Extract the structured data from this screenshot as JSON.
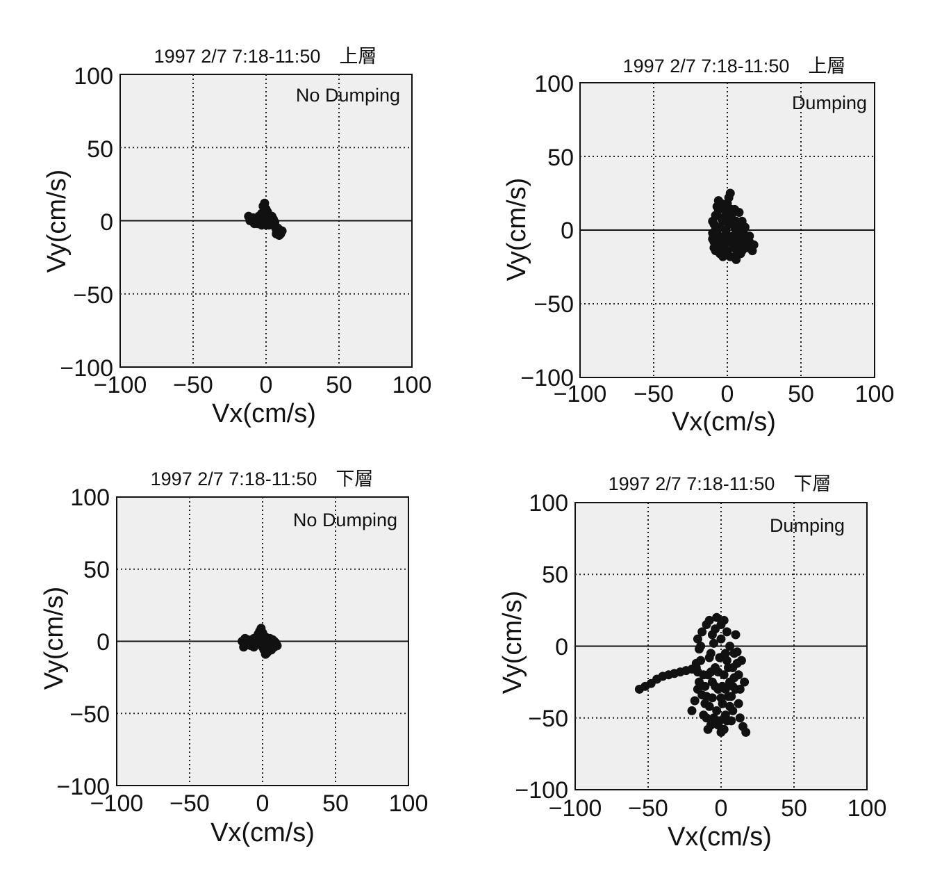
{
  "chart_data": [
    {
      "type": "scatter",
      "title": "1997 2/7 7:18-11:50　上層",
      "annotation": "No Dumping",
      "xlabel": "Vx(cm/s)",
      "ylabel": "Vy(cm/s)",
      "xlim": [
        -100,
        100
      ],
      "ylim": [
        -100,
        100
      ],
      "xticks": [
        "−100",
        "−50",
        "0",
        "50",
        "100"
      ],
      "yticks": [
        "100",
        "50",
        "0",
        "−50",
        "−100"
      ],
      "grid": true,
      "points": [
        [
          -12,
          3
        ],
        [
          -11,
          0
        ],
        [
          -9,
          2
        ],
        [
          -8,
          -2
        ],
        [
          -6,
          1
        ],
        [
          -5,
          3
        ],
        [
          -4,
          -1
        ],
        [
          -3,
          5
        ],
        [
          -2,
          10
        ],
        [
          -1,
          12
        ],
        [
          0,
          8
        ],
        [
          1,
          6
        ],
        [
          2,
          3
        ],
        [
          3,
          0
        ],
        [
          2,
          -3
        ],
        [
          4,
          -2
        ],
        [
          5,
          1
        ],
        [
          6,
          -4
        ],
        [
          7,
          -6
        ],
        [
          8,
          -8
        ],
        [
          9,
          -10
        ],
        [
          10,
          -9
        ],
        [
          11,
          -7
        ],
        [
          8,
          -5
        ],
        [
          5,
          -3
        ],
        [
          3,
          -1
        ],
        [
          0,
          2
        ],
        [
          -2,
          0
        ],
        [
          -4,
          2
        ],
        [
          -6,
          -2
        ],
        [
          -8,
          0
        ],
        [
          -10,
          1
        ],
        [
          0,
          -3
        ],
        [
          4,
          3
        ],
        [
          6,
          -1
        ],
        [
          9,
          -6
        ],
        [
          7,
          -9
        ],
        [
          -1,
          4
        ],
        [
          1,
          -2
        ],
        [
          -3,
          -3
        ]
      ]
    },
    {
      "type": "scatter",
      "title": "1997 2/7 7:18-11:50　上層",
      "annotation": "Dumping",
      "xlabel": "Vx(cm/s)",
      "ylabel": "Vy(cm/s)",
      "xlim": [
        -100,
        100
      ],
      "ylim": [
        -100,
        100
      ],
      "xticks": [
        "−100",
        "−50",
        "0",
        "50",
        "100"
      ],
      "yticks": [
        "100",
        "50",
        "0",
        "−50",
        "−100"
      ],
      "grid": true,
      "points": [
        [
          -10,
          -2
        ],
        [
          -9,
          4
        ],
        [
          -8,
          10
        ],
        [
          -7,
          16
        ],
        [
          -6,
          20
        ],
        [
          -5,
          -8
        ],
        [
          -4,
          -14
        ],
        [
          -3,
          6
        ],
        [
          -2,
          -4
        ],
        [
          -1,
          12
        ],
        [
          0,
          18
        ],
        [
          1,
          22
        ],
        [
          2,
          25
        ],
        [
          3,
          14
        ],
        [
          4,
          -12
        ],
        [
          5,
          -18
        ],
        [
          6,
          -20
        ],
        [
          7,
          -14
        ],
        [
          8,
          -6
        ],
        [
          9,
          2
        ],
        [
          10,
          6
        ],
        [
          11,
          -2
        ],
        [
          12,
          -8
        ],
        [
          13,
          -12
        ],
        [
          14,
          -10
        ],
        [
          15,
          -4
        ],
        [
          16,
          -12
        ],
        [
          17,
          -14
        ],
        [
          18,
          -10
        ],
        [
          -6,
          -10
        ],
        [
          -8,
          -14
        ],
        [
          -9,
          -8
        ],
        [
          -10,
          6
        ],
        [
          -4,
          8
        ],
        [
          -2,
          -12
        ],
        [
          0,
          -16
        ],
        [
          2,
          -18
        ],
        [
          4,
          -8
        ],
        [
          6,
          6
        ],
        [
          8,
          12
        ],
        [
          10,
          -14
        ],
        [
          -7,
          -2
        ],
        [
          -5,
          2
        ],
        [
          -3,
          -8
        ],
        [
          -1,
          0
        ],
        [
          1,
          4
        ],
        [
          3,
          -4
        ],
        [
          5,
          2
        ],
        [
          7,
          -8
        ],
        [
          9,
          -16
        ],
        [
          -8,
          0
        ],
        [
          -6,
          14
        ],
        [
          -4,
          18
        ],
        [
          -2,
          16
        ],
        [
          0,
          10
        ],
        [
          2,
          6
        ],
        [
          4,
          12
        ],
        [
          6,
          -2
        ],
        [
          8,
          -10
        ],
        [
          10,
          -4
        ],
        [
          12,
          2
        ],
        [
          -9,
          -12
        ],
        [
          -7,
          10
        ],
        [
          -5,
          -16
        ],
        [
          -3,
          -18
        ],
        [
          -1,
          -14
        ],
        [
          1,
          -8
        ],
        [
          3,
          8
        ],
        [
          5,
          14
        ],
        [
          7,
          0
        ],
        [
          13,
          -4
        ],
        [
          15,
          -8
        ],
        [
          11,
          -12
        ],
        [
          -10,
          -6
        ],
        [
          -6,
          -6
        ]
      ]
    },
    {
      "type": "scatter",
      "title": "1997 2/7 7:18-11:50　下層",
      "annotation": "No Dumping",
      "xlabel": "Vx(cm/s)",
      "ylabel": "Vy(cm/s)",
      "xlim": [
        -100,
        100
      ],
      "ylim": [
        -100,
        100
      ],
      "xticks": [
        "−100",
        "−50",
        "0",
        "50",
        "100"
      ],
      "yticks": [
        "100",
        "50",
        "0",
        "−50",
        "−100"
      ],
      "grid": true,
      "points": [
        [
          -14,
          0
        ],
        [
          -13,
          -4
        ],
        [
          -12,
          2
        ],
        [
          -11,
          -2
        ],
        [
          -10,
          1
        ],
        [
          -8,
          -3
        ],
        [
          -7,
          0
        ],
        [
          -6,
          2
        ],
        [
          -5,
          -1
        ],
        [
          -4,
          3
        ],
        [
          -3,
          5
        ],
        [
          -2,
          7
        ],
        [
          -1,
          9
        ],
        [
          0,
          6
        ],
        [
          1,
          3
        ],
        [
          2,
          0
        ],
        [
          3,
          -3
        ],
        [
          4,
          -5
        ],
        [
          3,
          -8
        ],
        [
          2,
          -9
        ],
        [
          1,
          -6
        ],
        [
          0,
          -4
        ],
        [
          -1,
          -2
        ],
        [
          -2,
          1
        ],
        [
          5,
          -2
        ],
        [
          6,
          1
        ],
        [
          7,
          -3
        ],
        [
          8,
          -4
        ],
        [
          9,
          -1
        ],
        [
          10,
          -3
        ],
        [
          8,
          0
        ],
        [
          6,
          -6
        ],
        [
          4,
          -1
        ],
        [
          2,
          3
        ],
        [
          -3,
          -2
        ],
        [
          -6,
          -4
        ],
        [
          -9,
          0
        ],
        [
          5,
          2
        ],
        [
          7,
          1
        ],
        [
          -12,
          -3
        ]
      ]
    },
    {
      "type": "scatter",
      "title": "1997 2/7 7:18-11:50　下層",
      "annotation": "Dumping",
      "xlabel": "Vx(cm/s)",
      "ylabel": "Vy(cm/s)",
      "xlim": [
        -100,
        100
      ],
      "ylim": [
        -100,
        100
      ],
      "xticks": [
        "−100",
        "−50",
        "0",
        "50",
        "100"
      ],
      "yticks": [
        "100",
        "50",
        "0",
        "−50",
        "−100"
      ],
      "grid": true,
      "points": [
        [
          -56,
          -30
        ],
        [
          -52,
          -28
        ],
        [
          -48,
          -26
        ],
        [
          -44,
          -23
        ],
        [
          -40,
          -21
        ],
        [
          -36,
          -20
        ],
        [
          -32,
          -19
        ],
        [
          -28,
          -18
        ],
        [
          -24,
          -17
        ],
        [
          -20,
          -16
        ],
        [
          -17,
          -15
        ],
        [
          -18,
          -38
        ],
        [
          -20,
          -45
        ],
        [
          -16,
          -30
        ],
        [
          -14,
          -10
        ],
        [
          -15,
          -2
        ],
        [
          -16,
          5
        ],
        [
          -13,
          10
        ],
        [
          -12,
          -20
        ],
        [
          -11,
          -28
        ],
        [
          -10,
          -35
        ],
        [
          -10,
          15
        ],
        [
          -8,
          -42
        ],
        [
          -8,
          18
        ],
        [
          -7,
          -5
        ],
        [
          -6,
          -25
        ],
        [
          -6,
          8
        ],
        [
          -5,
          -50
        ],
        [
          -4,
          -15
        ],
        [
          -4,
          12
        ],
        [
          -3,
          20
        ],
        [
          -2,
          -55
        ],
        [
          -2,
          -30
        ],
        [
          -1,
          -8
        ],
        [
          0,
          -60
        ],
        [
          0,
          5
        ],
        [
          0,
          15
        ],
        [
          1,
          -40
        ],
        [
          2,
          -20
        ],
        [
          2,
          18
        ],
        [
          3,
          -48
        ],
        [
          4,
          -10
        ],
        [
          4,
          10
        ],
        [
          5,
          -35
        ],
        [
          6,
          -25
        ],
        [
          6,
          0
        ],
        [
          7,
          -52
        ],
        [
          8,
          -45
        ],
        [
          8,
          -15
        ],
        [
          9,
          -5
        ],
        [
          10,
          -30
        ],
        [
          10,
          8
        ],
        [
          12,
          -20
        ],
        [
          12,
          -40
        ],
        [
          13,
          -50
        ],
        [
          14,
          -10
        ],
        [
          15,
          -56
        ],
        [
          16,
          -25
        ],
        [
          17,
          -60
        ],
        [
          -9,
          -58
        ],
        [
          -12,
          -48
        ],
        [
          -15,
          -25
        ],
        [
          -17,
          -12
        ],
        [
          -14,
          0
        ],
        [
          -11,
          -40
        ],
        [
          -7,
          -18
        ],
        [
          -3,
          -45
        ],
        [
          1,
          -28
        ],
        [
          3,
          -5
        ],
        [
          5,
          -15
        ],
        [
          7,
          -35
        ],
        [
          9,
          -22
        ],
        [
          11,
          -12
        ],
        [
          -5,
          2
        ],
        [
          -8,
          -8
        ],
        [
          -1,
          -52
        ],
        [
          2,
          -58
        ],
        [
          6,
          -42
        ],
        [
          -13,
          -34
        ],
        [
          -6,
          -36
        ],
        [
          0,
          -36
        ],
        [
          3,
          -30
        ],
        [
          8,
          -28
        ],
        [
          11,
          -4
        ],
        [
          13,
          -30
        ],
        [
          -9,
          -20
        ],
        [
          -4,
          -28
        ],
        [
          -2,
          -18
        ],
        [
          4,
          -52
        ],
        [
          -10,
          -50
        ],
        [
          -7,
          -55
        ],
        [
          -16,
          -18
        ]
      ]
    }
  ]
}
